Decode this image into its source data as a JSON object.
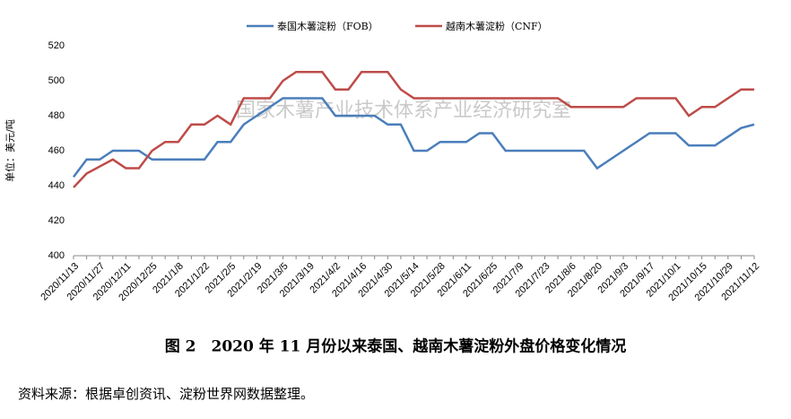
{
  "chart_data": {
    "type": "line",
    "ylabel": "单位：美元/吨",
    "watermark": "国家木薯产业技术体系产业经济研究室",
    "caption": "图 2　2020 年 11 月份以来泰国、越南木薯淀粉外盘价格变化情况",
    "source": "资料来源：根据卓创资讯、淀粉世界网数据整理。",
    "categories": [
      "2020/11/13",
      null,
      "2020/11/27",
      null,
      "2020/12/11",
      null,
      "2020/12/25",
      null,
      "2021/1/8",
      null,
      "2021/1/22",
      null,
      "2021/2/5",
      null,
      "2021/2/19",
      null,
      "2021/3/5",
      null,
      "2021/3/19",
      null,
      "2021/4/2",
      null,
      "2021/4/16",
      null,
      "2021/4/30",
      null,
      "2021/5/14",
      null,
      "2021/5/28",
      null,
      "2021/6/11",
      null,
      "2021/6/25",
      null,
      "2021/7/9",
      null,
      "2021/7/23",
      null,
      "2021/8/6",
      null,
      "2021/8/20",
      null,
      "2021/9/3",
      null,
      "2021/9/17",
      null,
      "2021/10/1",
      null,
      "2021/10/15",
      null,
      "2021/10/29",
      null,
      "2021/11/12"
    ],
    "series": [
      {
        "name": "泰国木薯淀粉（FOB）",
        "color": "#4a7ebb",
        "values": [
          445,
          455,
          455,
          460,
          460,
          460,
          455,
          455,
          455,
          455,
          455,
          465,
          465,
          475,
          480,
          485,
          490,
          490,
          490,
          490,
          480,
          480,
          480,
          480,
          475,
          475,
          460,
          460,
          465,
          465,
          465,
          470,
          470,
          460,
          460,
          460,
          460,
          460,
          460,
          460,
          450,
          455,
          460,
          465,
          470,
          470,
          470,
          463,
          463,
          463,
          468,
          473,
          475
        ]
      },
      {
        "name": "越南木薯淀粉（CNF）",
        "color": "#be4b48",
        "values": [
          439,
          447,
          451,
          455,
          450,
          450,
          460,
          465,
          465,
          475,
          475,
          480,
          475,
          490,
          490,
          490,
          500,
          505,
          505,
          505,
          495,
          495,
          505,
          505,
          505,
          495,
          490,
          490,
          490,
          490,
          490,
          490,
          490,
          490,
          490,
          490,
          490,
          490,
          485,
          485,
          485,
          485,
          485,
          490,
          490,
          490,
          490,
          480,
          485,
          485,
          490,
          495,
          495
        ]
      }
    ],
    "ylim": [
      400,
      520
    ],
    "yticks": [
      400,
      420,
      440,
      460,
      480,
      500,
      520
    ],
    "grid": false,
    "legend": "top"
  }
}
